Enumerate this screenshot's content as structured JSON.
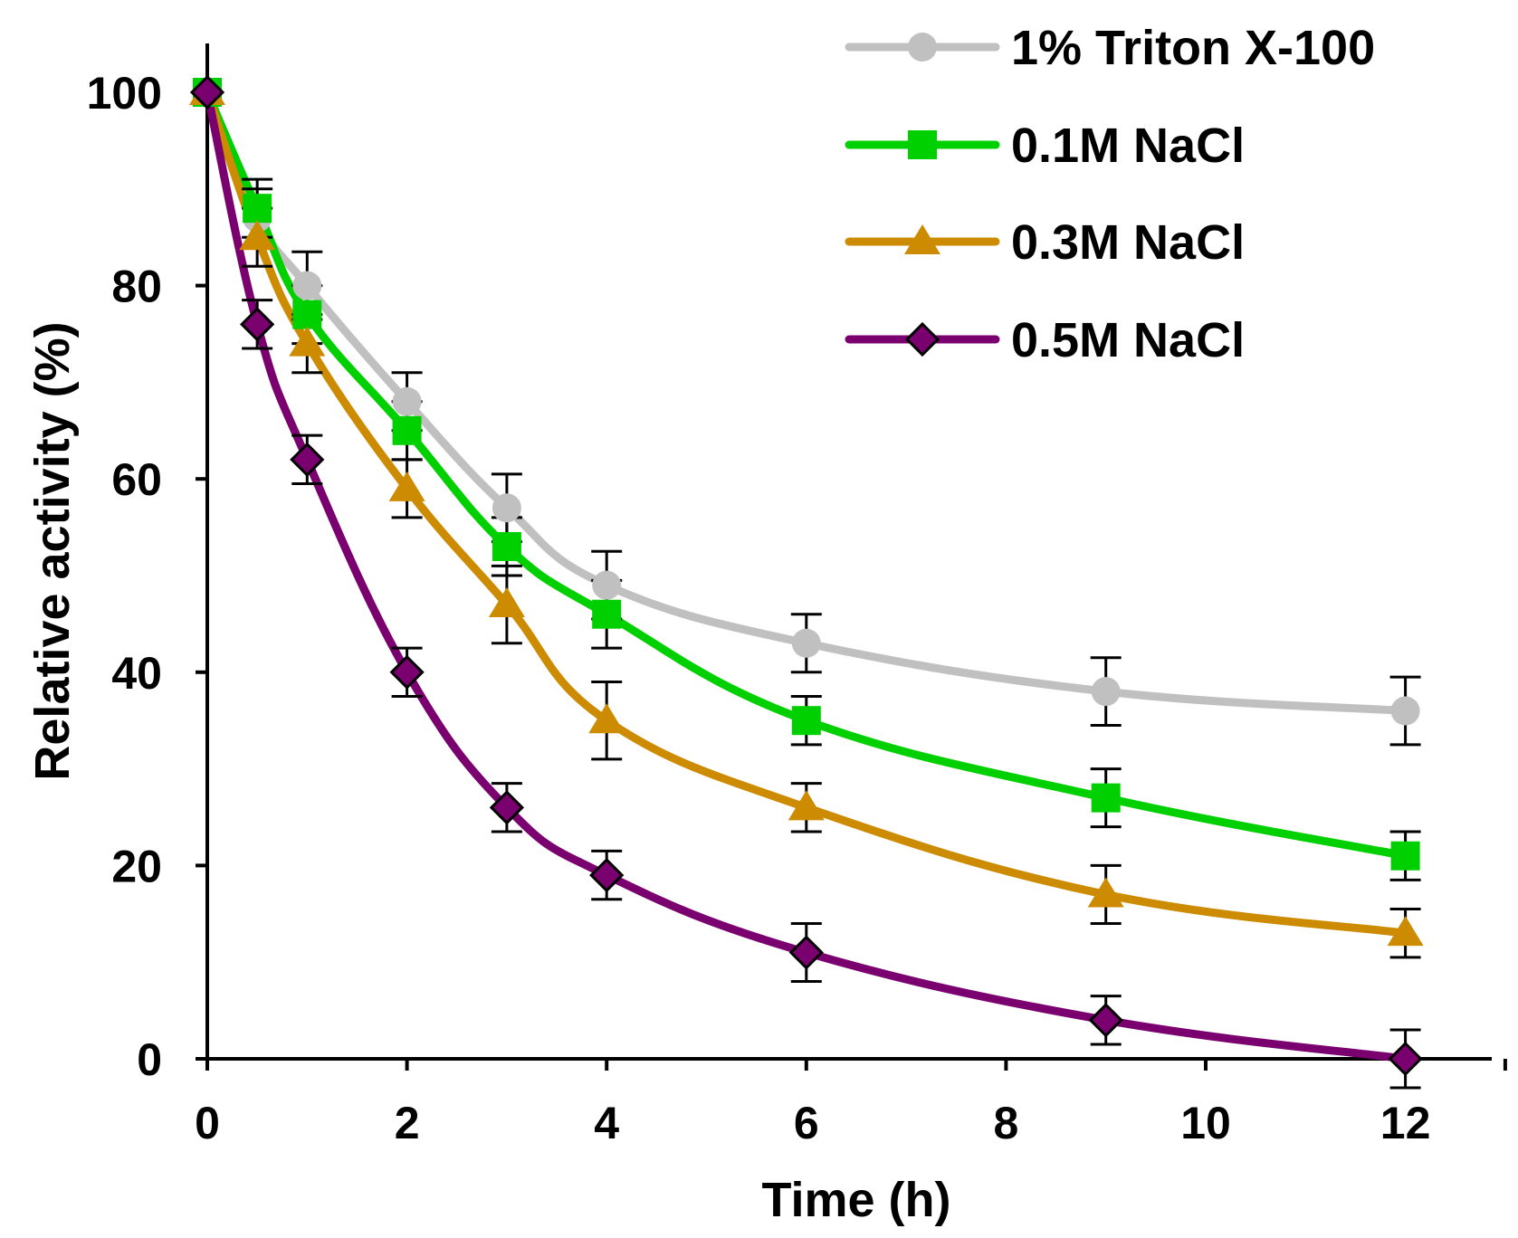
{
  "chart_data": {
    "type": "line",
    "title": "",
    "xlabel": "Time (h)",
    "ylabel": "Relative activity (%)",
    "xlim": [
      0,
      13
    ],
    "ylim": [
      0,
      100
    ],
    "xticks": [
      0,
      2,
      4,
      6,
      8,
      10,
      12
    ],
    "yticks": [
      0,
      20,
      40,
      60,
      80,
      100
    ],
    "x": [
      0,
      0.5,
      1,
      2,
      3,
      4,
      6,
      9,
      12
    ],
    "legend_position": "top-right",
    "series": [
      {
        "name": "1% Triton X-100",
        "color": "#c0c0c0",
        "marker": "circle",
        "values": [
          100,
          87,
          80,
          68,
          57,
          49,
          43,
          38,
          36
        ],
        "errors": [
          2,
          3,
          3.5,
          3,
          3.5,
          3.5,
          3,
          3.5,
          3.5
        ]
      },
      {
        "name": "0.1M NaCl",
        "color": "#00d000",
        "marker": "square",
        "values": [
          100,
          88,
          77,
          65,
          53,
          46,
          35,
          27,
          21
        ],
        "errors": [
          2,
          3,
          3,
          3,
          3,
          3.5,
          2.5,
          3,
          2.5
        ]
      },
      {
        "name": "0.3M NaCl",
        "color": "#cc8b00",
        "marker": "triangle",
        "values": [
          100,
          85,
          74,
          59,
          47,
          35,
          26,
          17,
          13
        ],
        "errors": [
          2,
          3,
          3,
          3,
          4,
          4,
          2.5,
          3,
          2.5
        ]
      },
      {
        "name": "0.5M NaCl",
        "color": "#7a0070",
        "marker": "diamond",
        "values": [
          100,
          76,
          62,
          40,
          26,
          19,
          11,
          4,
          0
        ],
        "errors": [
          2,
          2.5,
          2.5,
          2.5,
          2.5,
          2.5,
          3,
          2.5,
          3
        ]
      }
    ]
  }
}
